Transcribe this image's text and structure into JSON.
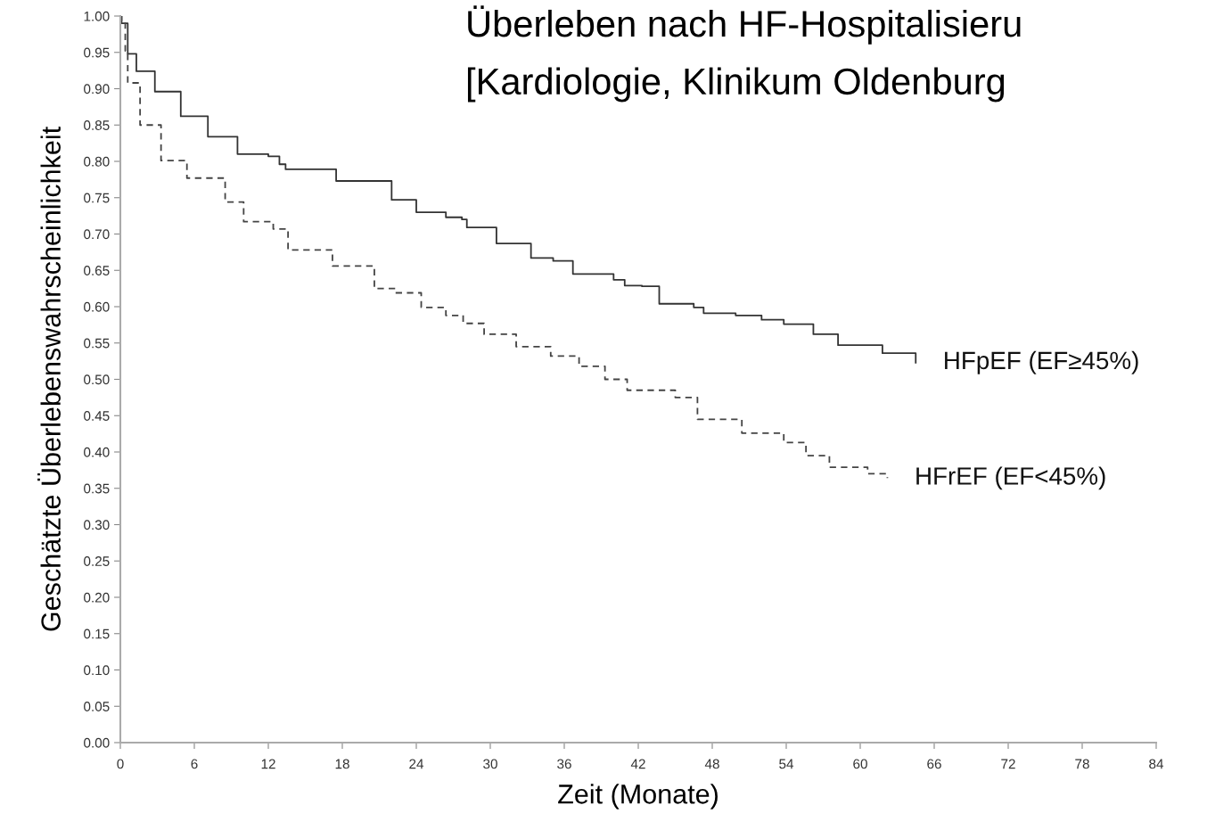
{
  "chart_data": {
    "type": "step",
    "title": "Überleben nach HF-Hospitalisieru",
    "subtitle": "[Kardiologie, Klinikum Oldenburg",
    "xlabel": "Zeit (Monate)",
    "ylabel": "Geschätzte Überlebenswahrscheinlichkeit",
    "xlim": [
      0,
      84
    ],
    "ylim": [
      0,
      1
    ],
    "xticks": [
      0,
      6,
      12,
      18,
      24,
      30,
      36,
      42,
      48,
      54,
      60,
      66,
      72,
      78,
      84
    ],
    "yticks": [
      {
        "value": 0,
        "label": "0.00"
      },
      {
        "value": 0.05,
        "label": "0.05"
      },
      {
        "value": 0.1,
        "label": "0.10"
      },
      {
        "value": 0.15,
        "label": "0.15"
      },
      {
        "value": 0.2,
        "label": "0.20"
      },
      {
        "value": 0.25,
        "label": "0.25"
      },
      {
        "value": 0.3,
        "label": "0.30"
      },
      {
        "value": 0.35,
        "label": "0.35"
      },
      {
        "value": 0.4,
        "label": "0.40"
      },
      {
        "value": 0.45,
        "label": "0.45"
      },
      {
        "value": 0.5,
        "label": "0.50"
      },
      {
        "value": 0.55,
        "label": "0.55"
      },
      {
        "value": 0.6,
        "label": "0.60"
      },
      {
        "value": 0.65,
        "label": "0.65"
      },
      {
        "value": 0.7,
        "label": "0.70"
      },
      {
        "value": 0.75,
        "label": "0.75"
      },
      {
        "value": 0.8,
        "label": "0.80"
      },
      {
        "value": 0.85,
        "label": "0.85"
      },
      {
        "value": 0.9,
        "label": "0.90"
      },
      {
        "value": 0.95,
        "label": "0.95"
      },
      {
        "value": 1,
        "label": "1.00"
      }
    ],
    "grid": false,
    "legend": false,
    "marker": "none",
    "series": [
      {
        "name": "HFpEF (EF≥45%)",
        "color": "#333333",
        "line_style": "solid",
        "x": [
          0,
          0.1,
          0.6,
          1.3,
          2.8,
          4.9,
          7.1,
          9.5,
          12,
          12.9,
          13.4,
          17.5,
          22,
          24,
          26.4,
          27.7,
          28.1,
          30.5,
          33.3,
          35.1,
          36.7,
          40,
          40.9,
          42.3,
          43.7,
          46.5,
          47.3,
          49.9,
          52,
          53.8,
          56.2,
          58.2,
          61.8,
          64.5
        ],
        "values": [
          1.0,
          0.99,
          0.948,
          0.924,
          0.896,
          0.862,
          0.834,
          0.81,
          0.807,
          0.796,
          0.789,
          0.773,
          0.747,
          0.73,
          0.723,
          0.72,
          0.709,
          0.687,
          0.667,
          0.663,
          0.645,
          0.637,
          0.629,
          0.628,
          0.604,
          0.599,
          0.591,
          0.588,
          0.582,
          0.576,
          0.562,
          0.547,
          0.536,
          0.523
        ]
      },
      {
        "name": "HFrEF (EF<45%)",
        "color": "#444444",
        "line_style": "dashed",
        "x": [
          0,
          0.1,
          0.4,
          0.6,
          1.6,
          3.3,
          5.4,
          8.5,
          10,
          12.4,
          13.6,
          17.2,
          20.6,
          22.3,
          24.4,
          26.4,
          27.8,
          29.5,
          32.1,
          34.9,
          37.2,
          39.3,
          41.1,
          45,
          46.8,
          50.4,
          53.8,
          55.6,
          57.5,
          60.6,
          62.2
        ],
        "values": [
          1.0,
          0.99,
          0.952,
          0.908,
          0.85,
          0.801,
          0.777,
          0.744,
          0.717,
          0.707,
          0.678,
          0.656,
          0.625,
          0.619,
          0.599,
          0.588,
          0.577,
          0.562,
          0.545,
          0.532,
          0.518,
          0.5,
          0.485,
          0.475,
          0.445,
          0.426,
          0.413,
          0.395,
          0.379,
          0.37,
          0.364
        ]
      }
    ]
  }
}
